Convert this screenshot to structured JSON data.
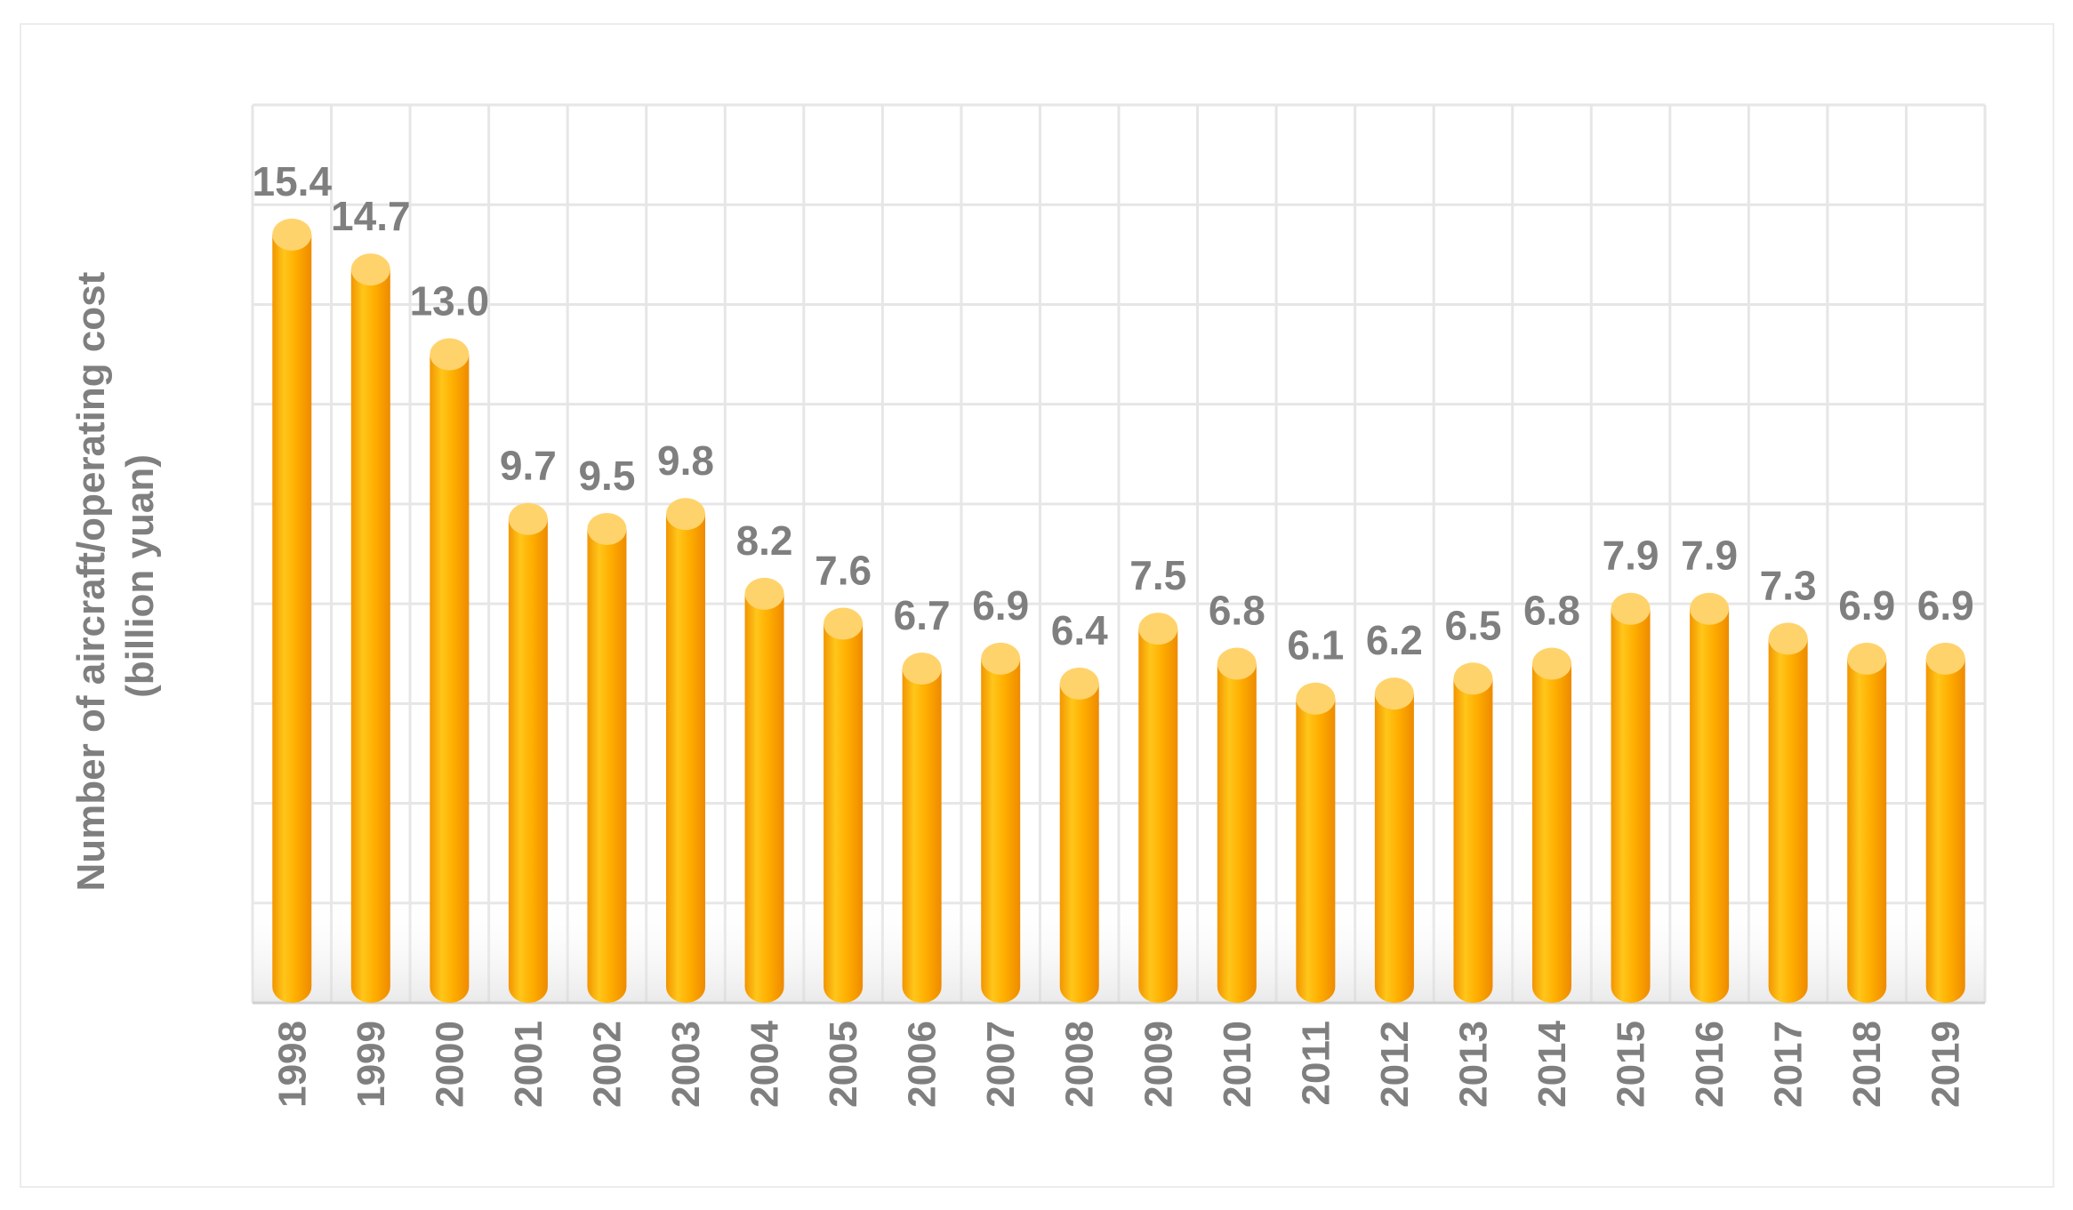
{
  "chart_data": {
    "type": "bar",
    "style": "3d-cylinder",
    "title": "",
    "xlabel": "",
    "ylabel": "Number of aircraft/operating cost (billion yuan)",
    "ylabel_lines": [
      "Number of aircraft/operating cost",
      "(billion yuan)"
    ],
    "ylim": [
      0,
      18
    ],
    "y_grid_step": 2,
    "grid": true,
    "categories": [
      "1998",
      "1999",
      "2000",
      "2001",
      "2002",
      "2003",
      "2004",
      "2005",
      "2006",
      "2007",
      "2008",
      "2009",
      "2010",
      "2011",
      "2012",
      "2013",
      "2014",
      "2015",
      "2016",
      "2017",
      "2018",
      "2019"
    ],
    "values": [
      15.4,
      14.7,
      13.0,
      9.7,
      9.5,
      9.8,
      8.2,
      7.6,
      6.7,
      6.9,
      6.4,
      7.5,
      6.8,
      6.1,
      6.2,
      6.5,
      6.8,
      7.9,
      7.9,
      7.3,
      6.9,
      6.9
    ],
    "value_labels": [
      "15.4",
      "14.7",
      "13.0",
      "9.7",
      "9.5",
      "9.8",
      "8.2",
      "7.6",
      "6.7",
      "6.9",
      "6.4",
      "7.5",
      "6.8",
      "6.1",
      "6.2",
      "6.5",
      "6.8",
      "7.9",
      "7.9",
      "7.3",
      "6.9",
      "6.9"
    ],
    "colors": {
      "bar_light": "#ffc61a",
      "bar_mid": "#ffab00",
      "bar_dark": "#f08c00",
      "bar_top": "#ffd36b",
      "label": "#7f7f7f",
      "grid": "#e6e6e6"
    }
  }
}
